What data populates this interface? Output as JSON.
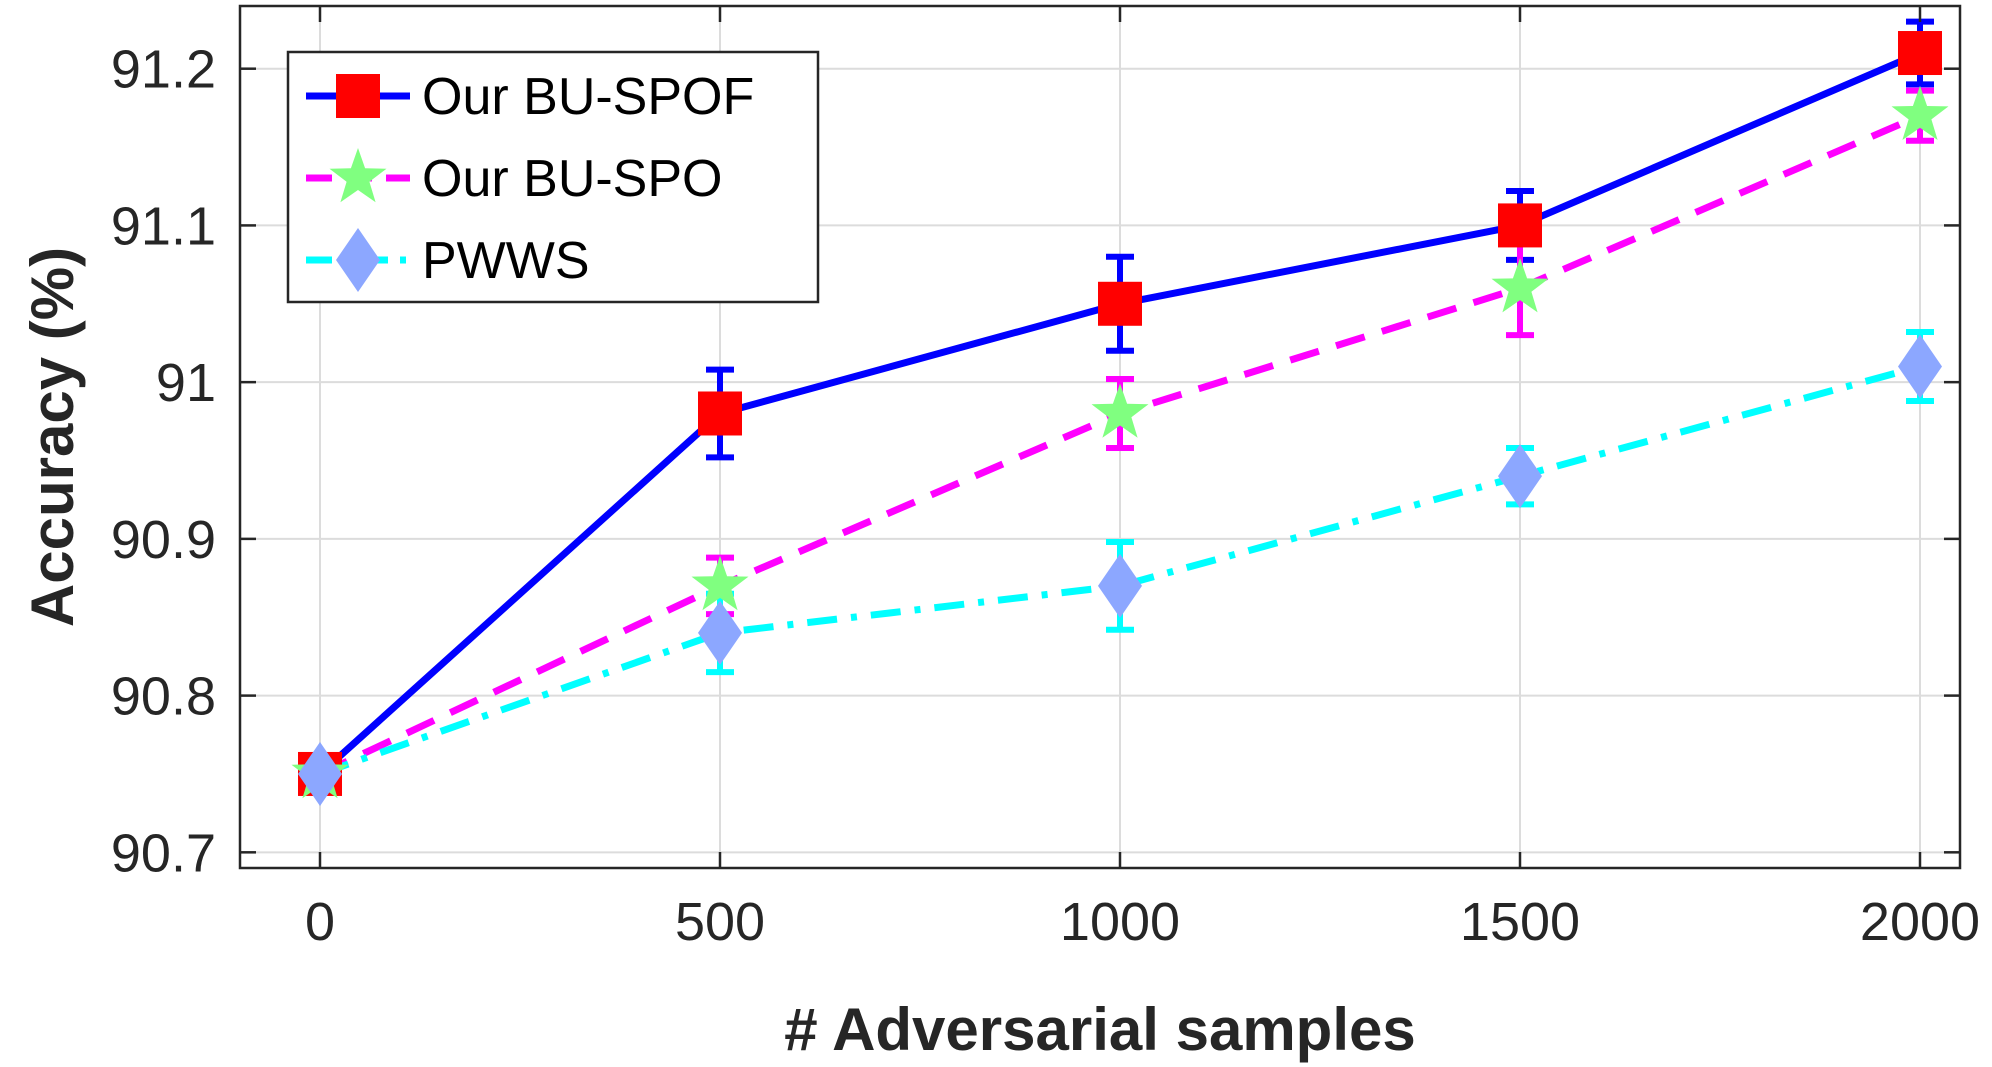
{
  "chart_data": {
    "type": "line",
    "xlabel": "# Adversarial samples",
    "ylabel": "Accuracy (%)",
    "xlim": [
      -100,
      2050
    ],
    "ylim": [
      90.69,
      91.24
    ],
    "xticks": [
      0,
      500,
      1000,
      1500,
      2000
    ],
    "yticks": [
      90.7,
      90.8,
      90.9,
      91,
      91.1,
      91.2
    ],
    "xtick_labels": [
      "0",
      "500",
      "1000",
      "1500",
      "2000"
    ],
    "ytick_labels": [
      "90.7",
      "90.8",
      "90.9",
      "91",
      "91.1",
      "91.2"
    ],
    "grid": true,
    "legend_position": "top-left",
    "x": [
      0,
      500,
      1000,
      1500,
      2000
    ],
    "series": [
      {
        "name": "Our BU-SPOF",
        "values": [
          90.75,
          90.98,
          91.05,
          91.1,
          91.21
        ],
        "errors": [
          0,
          0.028,
          0.03,
          0.022,
          0.02
        ],
        "line_color": "#0000ff",
        "errorbar_color": "#0000ff",
        "marker_color": "#ff0000",
        "marker": "square",
        "line_style": "solid"
      },
      {
        "name": "Our BU-SPO",
        "values": [
          90.75,
          90.87,
          90.98,
          91.06,
          91.17
        ],
        "errors": [
          0,
          0.018,
          0.022,
          0.03,
          0.016
        ],
        "line_color": "#ff00ff",
        "errorbar_color": "#ff00ff",
        "marker_color": "#80ff80",
        "marker": "star",
        "line_style": "dashed"
      },
      {
        "name": "PWWS",
        "values": [
          90.75,
          90.84,
          90.87,
          90.94,
          91.01
        ],
        "errors": [
          0,
          0.025,
          0.028,
          0.018,
          0.022
        ],
        "line_color": "#00ffff",
        "errorbar_color": "#00ffff",
        "marker_color": "#8ca7ff",
        "marker": "diamond",
        "line_style": "dash-dot"
      }
    ]
  }
}
